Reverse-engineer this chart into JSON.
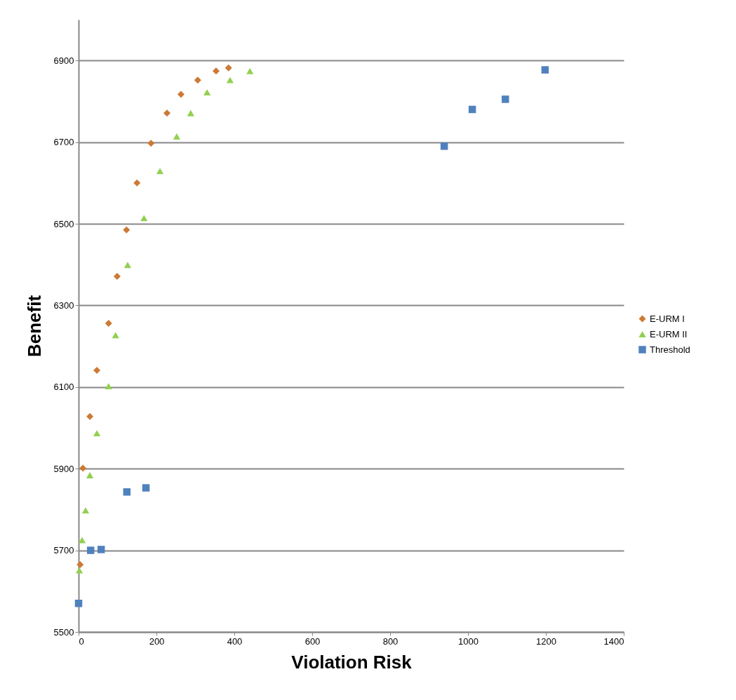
{
  "chart_data": {
    "type": "scatter",
    "xlabel": "Violation Risk",
    "ylabel": "Benefit",
    "xlim": [
      0,
      1400
    ],
    "xticks": [
      0,
      200,
      400,
      600,
      800,
      1000,
      1200,
      1400
    ],
    "ylim": [
      5500,
      7000
    ],
    "yticks": [
      5500,
      5700,
      5900,
      6100,
      6300,
      6500,
      6700,
      6900
    ],
    "grid": "y",
    "legend": "right",
    "series": [
      {
        "name": "E-URM I",
        "color": "#cc7a35",
        "marker": "diamond",
        "x": [
          4,
          11,
          29,
          47,
          77,
          99,
          123,
          150,
          186,
          227,
          263,
          306,
          353,
          385
        ],
        "values": [
          5665,
          5901,
          6028,
          6141,
          6256,
          6371,
          6485,
          6600,
          6697,
          6771,
          6817,
          6852,
          6874,
          6882
        ]
      },
      {
        "name": "E-URM II",
        "color": "#92d050",
        "marker": "triangle",
        "x": [
          2,
          9,
          18,
          29,
          47,
          77,
          95,
          126,
          168,
          209,
          252,
          288,
          330,
          389,
          440
        ],
        "values": [
          5651,
          5725,
          5798,
          5884,
          5987,
          6102,
          6227,
          6399,
          6514,
          6629,
          6714,
          6771,
          6822,
          6852,
          6874
        ]
      },
      {
        "name": "Threshold",
        "color": "#4f81bd",
        "marker": "square",
        "x": [
          0,
          31,
          58,
          124,
          173,
          939,
          1011,
          1096,
          1198
        ],
        "values": [
          5570,
          5700,
          5702,
          5843,
          5853,
          6690,
          6780,
          6805,
          6877
        ]
      }
    ]
  }
}
